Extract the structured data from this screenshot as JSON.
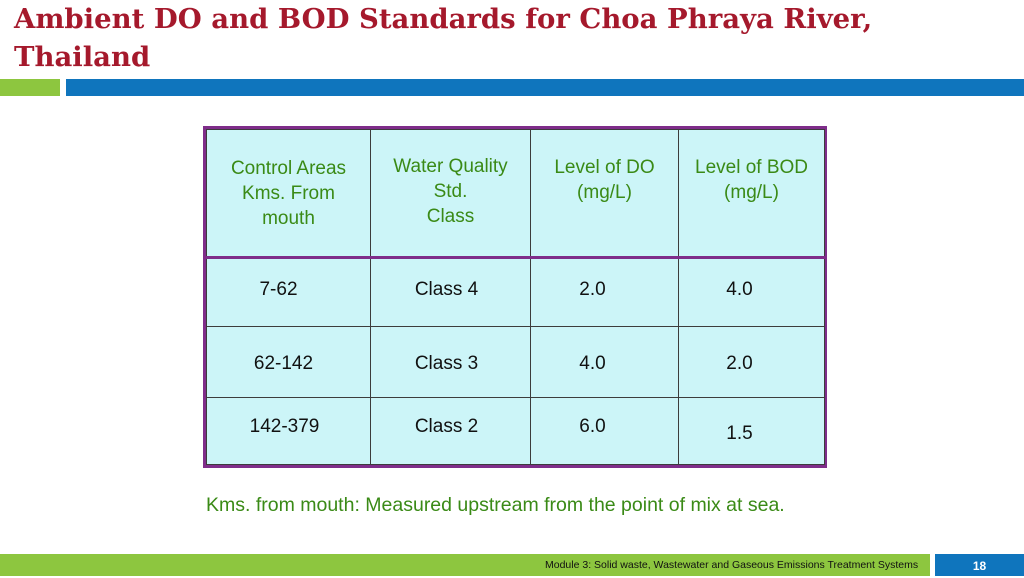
{
  "slide": {
    "title": "Ambient DO and BOD Standards for Choa Phraya River, Thailand",
    "colors": {
      "title": "#a5192c",
      "accent_green": "#8dc63f",
      "accent_blue": "#0f75bd",
      "table_border": "#7f2d8a",
      "table_fill": "#ccf5f8",
      "header_text": "#3a8a16"
    }
  },
  "table": {
    "headers": [
      [
        "Control Areas",
        "Kms. From",
        "mouth"
      ],
      [
        "Water Quality",
        "Std.",
        "Class"
      ],
      [
        "Level of DO",
        "(mg/L)"
      ],
      [
        "Level of BOD",
        "(mg/L)"
      ]
    ],
    "rows": [
      [
        "7-62",
        "Class 4",
        "2.0",
        "4.0"
      ],
      [
        "62-142",
        "Class 3",
        "4.0",
        "2.0"
      ],
      [
        "142-379",
        "Class 2",
        "6.0",
        "1.5"
      ]
    ]
  },
  "note": "Kms. from mouth: Measured upstream from the point of mix at sea.",
  "footer": {
    "module_text": "Module 3: Solid waste, Wastewater and Gaseous Emissions Treatment Systems",
    "page_number": "18"
  }
}
